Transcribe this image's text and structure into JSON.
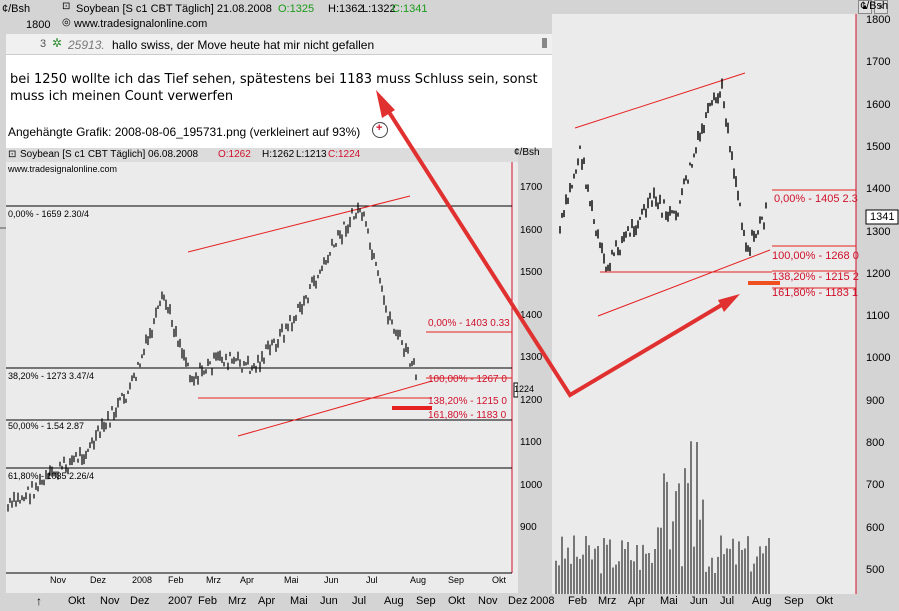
{
  "back_chart": {
    "unit_label": "¢/Bsh",
    "header_title": "Soybean [S c1 CBT  Täglich] 21.08.2008",
    "ohlc": {
      "o": "O:1325",
      "h": "H:1362",
      "l": "L:1322",
      "c": "C:1341"
    },
    "source": "www.tradesignalonline.com",
    "top_left_value": "1800",
    "price_ticks": [
      "1800",
      "1700",
      "1600",
      "1500",
      "1400",
      "1300",
      "1200",
      "1100",
      "1000",
      "900",
      "800",
      "700",
      "600",
      "500"
    ],
    "current_price": "1341",
    "fib_labels": [
      "0,00% - 1405 2.3",
      "100,00% - 1268 0",
      "138,20% - 1215 2",
      "161,80% - 1183 1"
    ],
    "month_labels_bottom": [
      "Okt",
      "Nov",
      "Dez",
      "2007",
      "Feb",
      "Mrz",
      "Apr",
      "Mai",
      "Jun",
      "Jul",
      "Aug",
      "Sep",
      "Okt",
      "Nov",
      "Dez",
      "2008",
      "Feb",
      "Mrz",
      "Apr",
      "Mai",
      "Jun",
      "Jul",
      "Aug",
      "Sep",
      "Okt"
    ],
    "up_arrow": "↑",
    "left_fib_fragment": "0,00% - 1659 2.30/4"
  },
  "post": {
    "count": "3",
    "post_number": "25913.",
    "title": "hallo swiss, der Move heute hat mir nicht gefallen",
    "body_line1": "bei 1250 wollte ich das Tief sehen, spätestens bei 1183 muss Schluss sein, sonst",
    "body_line2": "muss ich meinen Count verwerfen",
    "attachment": "Angehängte Grafik: 2008-08-06_195731.png (verkleinert auf 93%)"
  },
  "front_chart": {
    "header_title": "Soybean [S c1 CBT  Täglich] 06.08.2008",
    "ohlc": {
      "o": "O:1262",
      "h": "H:1262",
      "l": "L:1213",
      "c": "C:1224"
    },
    "source": "www.tradesignalonline.com",
    "unit_label": "¢/Bsh",
    "price_ticks": [
      "1700",
      "1600",
      "1500",
      "1400",
      "1300",
      "1200",
      "1100",
      "1000",
      "900"
    ],
    "current_price": "1224",
    "fib_left": [
      "0,00% - 1659 2.30/4",
      "38,20% - 1273 3.47/4",
      "50,00% - 1.54 2.87",
      "61,80% - 1035 2.26/4"
    ],
    "fib_right": [
      "0,00% - 1403 0.33",
      "100,00% - 1267 0",
      "138,20% - 1215 0",
      "161,80% - 1183 0"
    ],
    "months": [
      "Nov",
      "Dez",
      "2008",
      "Feb",
      "Mrz",
      "Apr",
      "Mai",
      "Jun",
      "Jul",
      "Aug",
      "Sep",
      "Okt"
    ]
  },
  "colors": {
    "accent_red": "#d0102a",
    "arrow_red": "#e03030",
    "fib_line": "#e62020",
    "bar_color": "#000000"
  }
}
